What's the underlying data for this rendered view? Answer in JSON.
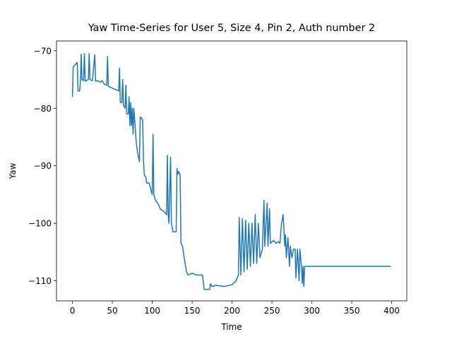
{
  "chart_data": {
    "type": "line",
    "title": "Yaw Time-Series for User 5, Size 4, Pin 2, Auth number 2",
    "x_label": "Time",
    "y_label": "Yaw",
    "color": "#1f77b4",
    "x": [
      0,
      1,
      3,
      5,
      6,
      7,
      9,
      10,
      11,
      12,
      14,
      15,
      16,
      20,
      21,
      22,
      25,
      28,
      29,
      32,
      35,
      37,
      40,
      43,
      44,
      45,
      50,
      55,
      58,
      59,
      60,
      62,
      63,
      64,
      66,
      67,
      68,
      70,
      71,
      72,
      73,
      74,
      75,
      76,
      77,
      78,
      80,
      82,
      84,
      85,
      88,
      89,
      90,
      92,
      93,
      96,
      98,
      100,
      101,
      102,
      104,
      107,
      110,
      115,
      118,
      119,
      120,
      121,
      123,
      124,
      126,
      130,
      131,
      132,
      133,
      135,
      136,
      138,
      140,
      143,
      145,
      150,
      155,
      163,
      165,
      172,
      173,
      175,
      180,
      190,
      200,
      205,
      208,
      209,
      211,
      213,
      215,
      217,
      219,
      221,
      223,
      225,
      227,
      229,
      231,
      233,
      235,
      238,
      240,
      241,
      244,
      245,
      247,
      248,
      252,
      255,
      258,
      260,
      262,
      264,
      265,
      266,
      267,
      268,
      270,
      272,
      273,
      275,
      277,
      279,
      280,
      282,
      284,
      285,
      287,
      288,
      289,
      290,
      291,
      399
    ],
    "values": [
      -78,
      -72.8,
      -72.5,
      -72.2,
      -72,
      -77,
      -77,
      -75.5,
      -70.6,
      -75,
      -75.2,
      -70.5,
      -75.3,
      -75,
      -70.5,
      -75,
      -75.2,
      -70.7,
      -75.3,
      -75.2,
      -75.5,
      -75.2,
      -75.8,
      -76,
      -71,
      -76.2,
      -76.5,
      -76.8,
      -77,
      -73,
      -79,
      -79,
      -75,
      -79.5,
      -80,
      -76,
      -81,
      -81,
      -78,
      -83,
      -79,
      -83,
      -80,
      -84.5,
      -80,
      -82,
      -86,
      -88,
      -89.3,
      -81.5,
      -82,
      -89,
      -91.5,
      -92,
      -93,
      -93,
      -94,
      -95,
      -84.5,
      -95,
      -96,
      -96.5,
      -97.5,
      -98,
      -98.5,
      -88.2,
      -98.5,
      -100,
      -88.5,
      -100,
      -101.5,
      -101.5,
      -90.5,
      -91.5,
      -91,
      -91.5,
      -103.5,
      -104,
      -106,
      -108.5,
      -109,
      -108.7,
      -109,
      -109,
      -111.5,
      -111.5,
      -110.5,
      -111,
      -110.8,
      -111,
      -110.7,
      -110,
      -109,
      -99,
      -109,
      -99.2,
      -108.5,
      -99.5,
      -108,
      -100,
      -107.5,
      -100,
      -107,
      -98.5,
      -107,
      -100,
      -106,
      -104.5,
      -96,
      -104,
      -96.5,
      -104,
      -97.5,
      -103.5,
      -103,
      -103.5,
      -103.2,
      -103.5,
      -100,
      -98.5,
      -101,
      -104,
      -102,
      -106,
      -102.5,
      -107.5,
      -104,
      -106,
      -104.5,
      -104.5,
      -109.5,
      -104.5,
      -110,
      -104.5,
      -107.5,
      -110.5,
      -107.5,
      -111,
      -107.5,
      -107.5
    ],
    "xlim": [
      -19.95,
      418.95
    ],
    "ylim": [
      -113.5,
      -68.3
    ],
    "xticks": [
      0,
      50,
      100,
      150,
      200,
      250,
      300,
      350,
      400
    ],
    "yticks": [
      {
        "value": -110,
        "label": "−110"
      },
      {
        "value": -100,
        "label": "−100"
      },
      {
        "value": -90,
        "label": "−90"
      },
      {
        "value": -80,
        "label": "−80"
      },
      {
        "value": -70,
        "label": "−70"
      }
    ]
  }
}
